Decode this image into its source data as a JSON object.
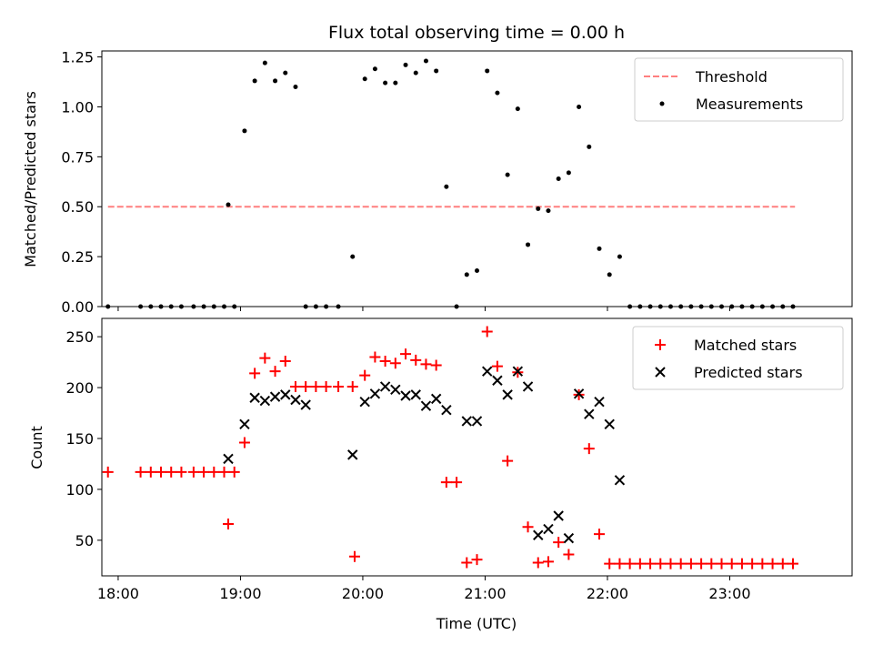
{
  "chart_data": [
    {
      "type": "scatter",
      "title": "Flux total observing time = 0.00 h",
      "xlabel": "",
      "ylabel": "Matched/Predicted stars",
      "xlim": [
        "17:52",
        "24:00"
      ],
      "ylim": [
        0,
        1.28
      ],
      "yticks": [
        "0.00",
        "0.25",
        "0.50",
        "0.75",
        "1.00",
        "1.25"
      ],
      "ytick_values": [
        0,
        0.25,
        0.5,
        0.75,
        1.0,
        1.25
      ],
      "legend": {
        "placement": "upper right",
        "entries": [
          "Threshold",
          "Measurements"
        ]
      },
      "threshold": {
        "name": "Threshold",
        "y": 0.5,
        "x_start": "17:55",
        "x_end": "23:32",
        "color": "#ff7f7f",
        "style": "dashed"
      },
      "series": [
        {
          "name": "Measurements",
          "color": "#000000",
          "marker": "dot",
          "x": [
            "17:55",
            "18:11",
            "18:16",
            "18:21",
            "18:26",
            "18:31",
            "18:37",
            "18:42",
            "18:47",
            "18:52",
            "18:57",
            "18:54",
            "19:02",
            "19:07",
            "19:12",
            "19:17",
            "19:22",
            "19:27",
            "19:32",
            "19:37",
            "19:42",
            "19:48",
            "19:55",
            "20:01",
            "20:06",
            "20:11",
            "20:16",
            "20:21",
            "20:26",
            "20:31",
            "20:36",
            "20:41",
            "20:46",
            "20:51",
            "20:56",
            "21:01",
            "21:06",
            "21:11",
            "21:16",
            "21:21",
            "21:26",
            "21:31",
            "21:36",
            "21:41",
            "21:46",
            "21:51",
            "21:56",
            "22:01",
            "22:06",
            "22:11",
            "22:16",
            "22:21",
            "22:26",
            "22:31",
            "22:36",
            "22:41",
            "22:46",
            "22:51",
            "22:56",
            "23:01",
            "23:06",
            "23:11",
            "23:16",
            "23:21",
            "23:26",
            "23:31"
          ],
          "y": [
            0,
            0,
            0,
            0,
            0,
            0,
            0,
            0,
            0,
            0,
            0,
            0.51,
            0.88,
            1.13,
            1.22,
            1.13,
            1.17,
            1.1,
            0,
            0,
            0,
            0,
            0.25,
            1.14,
            1.19,
            1.12,
            1.12,
            1.21,
            1.17,
            1.23,
            1.18,
            0.6,
            0,
            0.16,
            0.18,
            1.18,
            1.07,
            0.66,
            0.99,
            0.31,
            0.49,
            0.48,
            0.64,
            0.67,
            1.0,
            0.8,
            0.29,
            0.16,
            0.25,
            0,
            0,
            0,
            0,
            0,
            0,
            0,
            0,
            0,
            0,
            0,
            0,
            0,
            0,
            0,
            0,
            0
          ]
        }
      ]
    },
    {
      "type": "scatter",
      "title": "",
      "xlabel": "Time (UTC)",
      "ylabel": "Count",
      "xlim": [
        "17:52",
        "24:00"
      ],
      "ylim": [
        15,
        268
      ],
      "yticks": [
        "50",
        "100",
        "150",
        "200",
        "250"
      ],
      "ytick_values": [
        50,
        100,
        150,
        200,
        250
      ],
      "xticks": [
        "18:00",
        "19:00",
        "20:00",
        "21:00",
        "22:00",
        "23:00"
      ],
      "xtick_values": [
        "18:00",
        "19:00",
        "20:00",
        "21:00",
        "22:00",
        "23:00"
      ],
      "legend": {
        "placement": "upper right",
        "entries": [
          "Matched stars",
          "Predicted stars"
        ]
      },
      "series": [
        {
          "name": "Matched stars",
          "color": "#ff0000",
          "marker": "plus",
          "x": [
            "17:55",
            "18:11",
            "18:16",
            "18:21",
            "18:26",
            "18:31",
            "18:37",
            "18:42",
            "18:47",
            "18:52",
            "18:57",
            "18:54",
            "19:02",
            "19:07",
            "19:12",
            "19:17",
            "19:22",
            "19:27",
            "19:32",
            "19:37",
            "19:42",
            "19:48",
            "19:55",
            "19:56",
            "20:01",
            "20:06",
            "20:11",
            "20:16",
            "20:21",
            "20:26",
            "20:31",
            "20:36",
            "20:41",
            "20:46",
            "20:51",
            "20:56",
            "21:01",
            "21:06",
            "21:11",
            "21:16",
            "21:21",
            "21:26",
            "21:31",
            "21:36",
            "21:41",
            "21:46",
            "21:51",
            "21:56",
            "22:01",
            "22:06",
            "22:11",
            "22:16",
            "22:21",
            "22:26",
            "22:31",
            "22:36",
            "22:41",
            "22:46",
            "22:51",
            "22:56",
            "23:01",
            "23:06",
            "23:11",
            "23:16",
            "23:21",
            "23:26",
            "23:31"
          ],
          "y": [
            117,
            117,
            117,
            117,
            117,
            117,
            117,
            117,
            117,
            117,
            117,
            66,
            146,
            214,
            229,
            216,
            226,
            201,
            201,
            201,
            201,
            201,
            201,
            34,
            212,
            230,
            226,
            224,
            233,
            227,
            223,
            222,
            107,
            107,
            28,
            31,
            255,
            221,
            128,
            215,
            63,
            28,
            29,
            48,
            36,
            193,
            140,
            56,
            27,
            27,
            27,
            27,
            27,
            27,
            27,
            27,
            27,
            27,
            27,
            27,
            27,
            27,
            27,
            27,
            27,
            27,
            27
          ]
        },
        {
          "name": "Predicted stars",
          "color": "#000000",
          "marker": "x",
          "x": [
            "18:54",
            "19:02",
            "19:07",
            "19:12",
            "19:17",
            "19:22",
            "19:27",
            "19:32",
            "19:55",
            "20:01",
            "20:06",
            "20:11",
            "20:16",
            "20:21",
            "20:26",
            "20:31",
            "20:36",
            "20:41",
            "20:51",
            "20:56",
            "21:01",
            "21:06",
            "21:11",
            "21:16",
            "21:21",
            "21:26",
            "21:31",
            "21:36",
            "21:41",
            "21:46",
            "21:51",
            "21:56",
            "22:01",
            "22:06"
          ],
          "y": [
            130,
            164,
            190,
            187,
            191,
            193,
            188,
            183,
            134,
            186,
            194,
            201,
            198,
            192,
            193,
            182,
            189,
            178,
            167,
            167,
            216,
            207,
            193,
            216,
            201,
            55,
            61,
            74,
            52,
            194,
            174,
            186,
            164,
            109
          ]
        }
      ]
    }
  ]
}
